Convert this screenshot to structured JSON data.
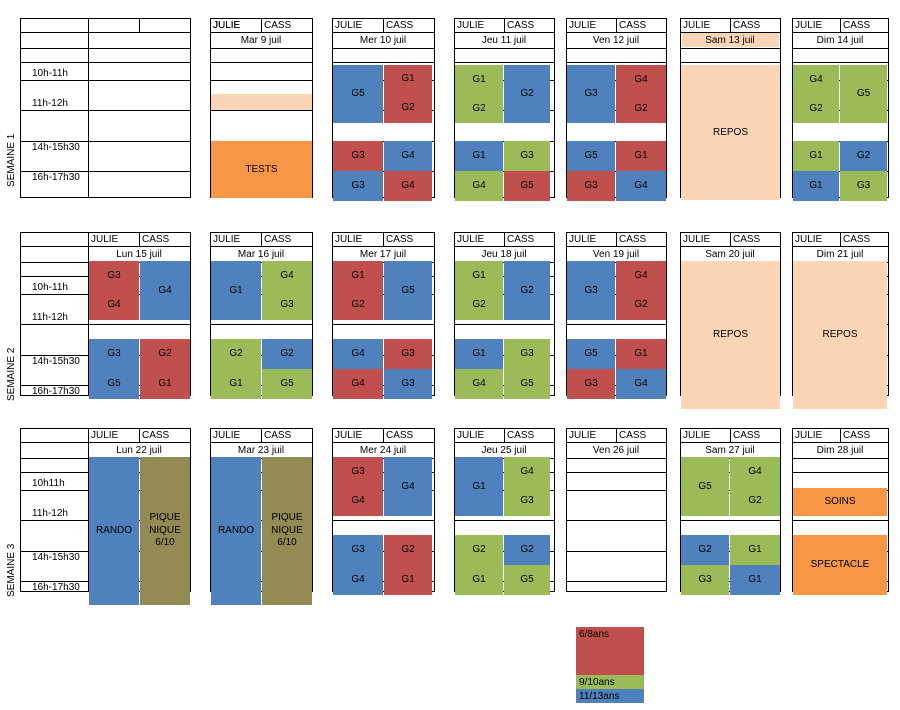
{
  "colors": {
    "red": "#c0504d",
    "blue": "#4f81bd",
    "green": "#9bbb59",
    "peach": "#fbd5b5",
    "orange": "#f79646",
    "olive": "#948a54"
  },
  "labels": {
    "julie": "JULIE",
    "cass": "CASS"
  },
  "weeks": [
    {
      "name": "SEMAINE 1",
      "times": [
        "10h-11h",
        "11h-12h",
        "14h-15h30",
        "16h-17h30"
      ],
      "days": [
        "",
        "Mar 9 juil",
        "Mer 10 juil",
        "Jeu 11 juil",
        "Ven 12 juil",
        "Sam 13 juil",
        "Dim 14 juil"
      ],
      "blocks": [
        {
          "t": "TESTS",
          "c": "orange"
        },
        {
          "t": "G5",
          "c": "blue"
        },
        {
          "t": "G1",
          "c": "red"
        },
        {
          "t": "G2",
          "c": "red"
        },
        {
          "t": "G3",
          "c": "red"
        },
        {
          "t": "G4",
          "c": "blue"
        },
        {
          "t": "G3",
          "c": "blue"
        },
        {
          "t": "G4",
          "c": "red"
        },
        {
          "t": "G1",
          "c": "green"
        },
        {
          "t": "G2",
          "c": "green"
        },
        {
          "t": "G2",
          "c": "blue"
        },
        {
          "t": "G1",
          "c": "blue"
        },
        {
          "t": "G3",
          "c": "green"
        },
        {
          "t": "G4",
          "c": "green"
        },
        {
          "t": "G5",
          "c": "red"
        },
        {
          "t": "G3",
          "c": "blue"
        },
        {
          "t": "G4",
          "c": "red"
        },
        {
          "t": "G2",
          "c": "red"
        },
        {
          "t": "G5",
          "c": "blue"
        },
        {
          "t": "G1",
          "c": "red"
        },
        {
          "t": "G3",
          "c": "red"
        },
        {
          "t": "G4",
          "c": "blue"
        },
        {
          "t": "REPOS",
          "c": "peach"
        },
        {
          "t": "G4",
          "c": "green"
        },
        {
          "t": "G2",
          "c": "green"
        },
        {
          "t": "G5",
          "c": "green"
        },
        {
          "t": "G1",
          "c": "green"
        },
        {
          "t": "G2",
          "c": "blue"
        },
        {
          "t": "G1",
          "c": "blue"
        },
        {
          "t": "G3",
          "c": "green"
        }
      ]
    },
    {
      "name": "SEMAINE 2",
      "times": [
        "10h-11h",
        "11h-12h",
        "14h-15h30",
        "16h-17h30"
      ],
      "days": [
        "Lun 15 juil",
        "Mar 16 juil",
        "Mer 17 juil",
        "Jeu 18 juil",
        "Ven 19 juil",
        "Sam 20 juil",
        "Dim 21 juil"
      ],
      "blocks": [
        {
          "t": "G3",
          "c": "red"
        },
        {
          "t": "G4",
          "c": "red"
        },
        {
          "t": "G4",
          "c": "blue"
        },
        {
          "t": "G3",
          "c": "blue"
        },
        {
          "t": "G2",
          "c": "red"
        },
        {
          "t": "G5",
          "c": "blue"
        },
        {
          "t": "G1",
          "c": "red"
        },
        {
          "t": "G1",
          "c": "blue"
        },
        {
          "t": "G4",
          "c": "green"
        },
        {
          "t": "G3",
          "c": "green"
        },
        {
          "t": "G2",
          "c": "green"
        },
        {
          "t": "G2",
          "c": "blue"
        },
        {
          "t": "G1",
          "c": "green"
        },
        {
          "t": "G5",
          "c": "green"
        },
        {
          "t": "G1",
          "c": "red"
        },
        {
          "t": "G2",
          "c": "red"
        },
        {
          "t": "G5",
          "c": "blue"
        },
        {
          "t": "G4",
          "c": "blue"
        },
        {
          "t": "G3",
          "c": "red"
        },
        {
          "t": "G4",
          "c": "red"
        },
        {
          "t": "G3",
          "c": "blue"
        },
        {
          "t": "G1",
          "c": "green"
        },
        {
          "t": "G2",
          "c": "green"
        },
        {
          "t": "G2",
          "c": "blue"
        },
        {
          "t": "G1",
          "c": "blue"
        },
        {
          "t": "G3",
          "c": "green"
        },
        {
          "t": "G4",
          "c": "green"
        },
        {
          "t": "G5",
          "c": "green"
        },
        {
          "t": "G3",
          "c": "blue"
        },
        {
          "t": "G4",
          "c": "red"
        },
        {
          "t": "G2",
          "c": "red"
        },
        {
          "t": "G5",
          "c": "blue"
        },
        {
          "t": "G1",
          "c": "red"
        },
        {
          "t": "G3",
          "c": "red"
        },
        {
          "t": "G4",
          "c": "blue"
        },
        {
          "t": "REPOS",
          "c": "peach"
        },
        {
          "t": "REPOS",
          "c": "peach"
        }
      ]
    },
    {
      "name": "SEMAINE 3",
      "times": [
        "10h11h",
        "11h-12h",
        "14h-15h30",
        "16h-17h30"
      ],
      "days": [
        "Lun 22 juil",
        "Mar 23 juil",
        "Mer 24 juil",
        "Jeu 25 juil",
        "Ven 26 juil",
        "Sam 27 juil",
        "Dim 28 juil"
      ],
      "blocks": [
        {
          "t": "RANDO",
          "c": "blue"
        },
        {
          "t": "PIQUE NIQUE 6/10",
          "c": "olive"
        },
        {
          "t": "RANDO",
          "c": "blue"
        },
        {
          "t": "PIQUE NIQUE 6/10",
          "c": "olive"
        },
        {
          "t": "G3",
          "c": "red"
        },
        {
          "t": "G4",
          "c": "red"
        },
        {
          "t": "G4",
          "c": "blue"
        },
        {
          "t": "G3",
          "c": "blue"
        },
        {
          "t": "G2",
          "c": "red"
        },
        {
          "t": "G4",
          "c": "blue"
        },
        {
          "t": "G1",
          "c": "red"
        },
        {
          "t": "G1",
          "c": "blue"
        },
        {
          "t": "G4",
          "c": "green"
        },
        {
          "t": "G3",
          "c": "green"
        },
        {
          "t": "G2",
          "c": "green"
        },
        {
          "t": "G2",
          "c": "blue"
        },
        {
          "t": "G1",
          "c": "green"
        },
        {
          "t": "G5",
          "c": "green"
        },
        {
          "t": "G5",
          "c": "green"
        },
        {
          "t": "G4",
          "c": "green"
        },
        {
          "t": "G2",
          "c": "green"
        },
        {
          "t": "G2",
          "c": "blue"
        },
        {
          "t": "G1",
          "c": "green"
        },
        {
          "t": "G3",
          "c": "green"
        },
        {
          "t": "G1",
          "c": "blue"
        },
        {
          "t": "SOINS",
          "c": "orange"
        },
        {
          "t": "SPECTACLE",
          "c": "orange"
        }
      ]
    }
  ],
  "legend": [
    {
      "label": "6/8ans",
      "c": "red"
    },
    {
      "label": "9/10ans",
      "c": "green"
    },
    {
      "label": "11/13ans",
      "c": "blue"
    }
  ]
}
